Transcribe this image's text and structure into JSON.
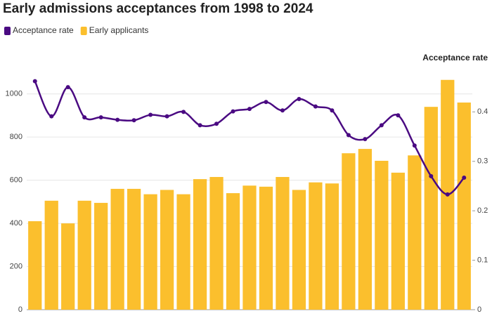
{
  "chart_data": {
    "type": "bar",
    "title": "Early admissions acceptances from 1998 to 2024",
    "y2label": "Acceptance rate",
    "categories": [
      null,
      null,
      null,
      null,
      null,
      null,
      null,
      null,
      null,
      null,
      null,
      null,
      null,
      null,
      null,
      null,
      null,
      null,
      null,
      null,
      null,
      null,
      null,
      null,
      null,
      null,
      null
    ],
    "series": [
      {
        "name": "Acceptance rate",
        "type": "line",
        "axis": "y2",
        "color": "#4a0a82",
        "values": [
          0.462,
          0.391,
          0.45,
          0.389,
          0.389,
          0.384,
          0.383,
          0.394,
          0.391,
          0.4,
          0.373,
          0.376,
          0.401,
          0.406,
          0.42,
          0.403,
          0.426,
          0.411,
          0.403,
          0.353,
          0.345,
          0.373,
          0.393,
          0.332,
          0.27,
          0.233,
          0.267
        ]
      },
      {
        "name": "Early applicants",
        "type": "bar",
        "color": "#fbbf2d",
        "values": [
          410,
          505,
          400,
          505,
          495,
          560,
          560,
          535,
          555,
          535,
          605,
          615,
          540,
          575,
          570,
          615,
          555,
          590,
          585,
          725,
          745,
          690,
          635,
          715,
          940,
          1065,
          960
        ]
      }
    ],
    "ylim": [
      0,
      1100
    ],
    "yticks": [
      0,
      200,
      400,
      600,
      800,
      1000
    ],
    "y2lim": [
      0,
      0.48
    ],
    "y2ticks": [
      0,
      0.1,
      0.2,
      0.3,
      0.4
    ],
    "grid": true
  }
}
